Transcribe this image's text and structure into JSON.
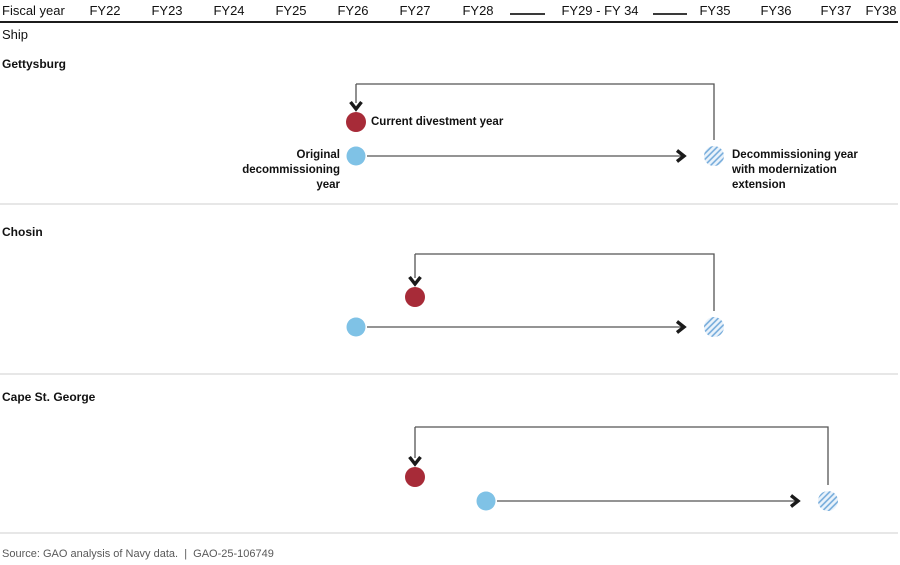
{
  "header": {
    "axis_title": "Fiscal year",
    "ship_column_label": "Ship"
  },
  "legend": {
    "current_divestment": "Current divestment year",
    "original_decommissioning": "Original\ndecommissioning\nyear",
    "modernization_extension": "Decommissioning year\nwith modernization\nextension"
  },
  "source_note": "Source: GAO analysis of Navy data.  |  GAO-25-106749",
  "colors": {
    "divestment_red": "#A72B38",
    "original_blue": "#7FC2E6",
    "hatch_line_blue": "#76ACDB",
    "hatch_bg_blue": "#EAF3FB",
    "connector_gray": "#555555",
    "arrowhead_black": "#1A1A1A",
    "divider_gray": "#CFCFCF"
  },
  "chart_data": {
    "type": "timeline",
    "title": "",
    "x_axis": {
      "title": "Fiscal year",
      "ticks": [
        "FY22",
        "FY23",
        "FY24",
        "FY25",
        "FY26",
        "FY27",
        "FY28",
        "FY29 - FY 34",
        "FY35",
        "FY36",
        "FY37",
        "FY38"
      ],
      "compressed_range": "FY29 - FY 34"
    },
    "row_header": "Ship",
    "marker_legend": [
      {
        "marker": "red-dot",
        "label": "Current divestment year"
      },
      {
        "marker": "blue-dot",
        "label": "Original decommissioning year"
      },
      {
        "marker": "hatched-dot",
        "label": "Decommissioning year with modernization extension"
      }
    ],
    "ships": [
      {
        "name": "Gettysburg",
        "current_divestment_year": "FY26",
        "original_decommissioning_year": "FY26",
        "decommissioning_with_extension_year": "FY35"
      },
      {
        "name": "Chosin",
        "current_divestment_year": "FY27",
        "original_decommissioning_year": "FY26",
        "decommissioning_with_extension_year": "FY35"
      },
      {
        "name": "Cape St. George",
        "current_divestment_year": "FY27",
        "original_decommissioning_year": "FY28",
        "decommissioning_with_extension_year": "FY37"
      }
    ]
  }
}
